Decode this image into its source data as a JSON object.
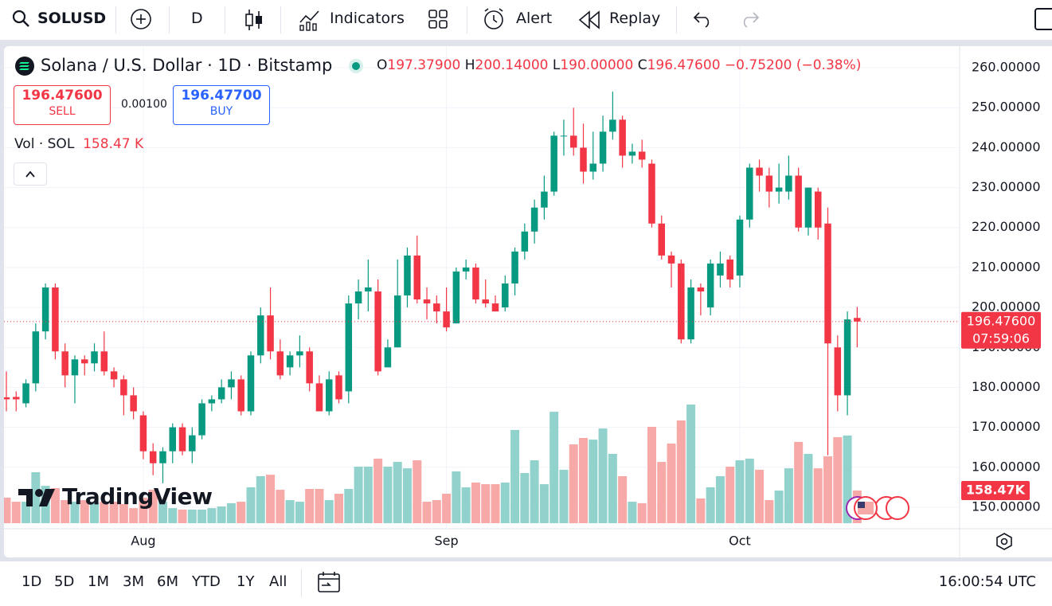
{
  "toolbar": {
    "symbol": "SOLUSD",
    "interval": "D",
    "indicators": "Indicators",
    "alert": "Alert",
    "replay": "Replay"
  },
  "legend": {
    "title": "Solana / U.S. Dollar · 1D · Bitstamp",
    "open_key": "O",
    "open": "197.37900",
    "high_key": "H",
    "high": "200.14000",
    "low_key": "L",
    "low": "190.00000",
    "close_key": "C",
    "close": "196.47600",
    "change": "−0.75200 (−0.38%)"
  },
  "trade": {
    "sell_price": "196.47600",
    "sell_label": "SELL",
    "spread": "0.00100",
    "buy_price": "196.47700",
    "buy_label": "BUY"
  },
  "volume_legend": {
    "label": "Vol · SOL",
    "value": "158.47 K"
  },
  "watermark": "TradingView",
  "chart_data": {
    "type": "candlestick",
    "categories": [
      null,
      null,
      null,
      null,
      null,
      null,
      null,
      null,
      null,
      null,
      null,
      null,
      null,
      null,
      "Aug",
      null,
      null,
      null,
      null,
      null,
      null,
      null,
      null,
      null,
      null,
      null,
      null,
      null,
      null,
      null,
      null,
      null,
      null,
      null,
      null,
      null,
      null,
      null,
      null,
      null,
      null,
      null,
      null,
      null,
      null,
      "Sep",
      null,
      null,
      null,
      null,
      null,
      null,
      null,
      null,
      null,
      null,
      null,
      null,
      null,
      null,
      null,
      null,
      null,
      null,
      null,
      null,
      null,
      null,
      null,
      null,
      null,
      null,
      null,
      null,
      null,
      "Oct",
      null,
      null,
      null,
      null,
      null,
      null,
      null,
      null,
      null,
      null,
      null,
      null
    ],
    "open": [
      177.5,
      177.6,
      176,
      181,
      194,
      205,
      189,
      183,
      187,
      186,
      189,
      184,
      182,
      178,
      173,
      164,
      161,
      164,
      170,
      164,
      168,
      176,
      177,
      180,
      182,
      174,
      188,
      198,
      189,
      185,
      188,
      189,
      181,
      174,
      183,
      179,
      201,
      204,
      204,
      185,
      190,
      203,
      213,
      202,
      201,
      199,
      196,
      209,
      210,
      202,
      201,
      200,
      206,
      214,
      219,
      225,
      229,
      243,
      243,
      240,
      234,
      236,
      244,
      247,
      238,
      239,
      236,
      221,
      213,
      211,
      192,
      205,
      200,
      208,
      212,
      208,
      222,
      235,
      233,
      229,
      229,
      233,
      220,
      229,
      221,
      190,
      178,
      197.379
    ],
    "high": [
      184,
      179,
      182,
      196,
      206,
      206,
      191,
      188,
      188,
      191,
      194,
      185,
      183,
      180,
      174,
      166,
      165,
      171,
      171,
      170,
      177,
      178,
      182,
      184,
      183,
      189,
      200,
      205,
      192,
      189,
      193,
      190,
      183,
      184,
      184,
      203,
      207,
      212,
      207,
      192,
      212,
      215,
      218,
      205,
      203,
      205,
      210,
      212,
      211,
      207,
      203,
      208,
      215,
      221,
      227,
      233,
      244,
      247,
      250,
      246,
      244,
      248,
      254,
      248,
      241,
      242,
      237,
      223,
      214,
      212,
      207,
      206,
      212,
      214,
      213,
      223,
      236,
      237,
      235,
      236,
      238,
      235,
      230,
      230,
      225,
      193,
      199,
      200.14
    ],
    "low": [
      174,
      174,
      175,
      179,
      192,
      187,
      180,
      176,
      183,
      184,
      183,
      180,
      173,
      172,
      162,
      158,
      156,
      161,
      163,
      161,
      167,
      174,
      176,
      177,
      173,
      173,
      186,
      187,
      182,
      183,
      185,
      179,
      174,
      173,
      176,
      176,
      197,
      199,
      183,
      185,
      190,
      200,
      201,
      197,
      196,
      194,
      196,
      207,
      201,
      200,
      199,
      199,
      203,
      212,
      216,
      222,
      228,
      238,
      238,
      231,
      232,
      234,
      242,
      235,
      236,
      235,
      220,
      212,
      205,
      191,
      191,
      198,
      198,
      205,
      205,
      205,
      220,
      229,
      225,
      226,
      227,
      219,
      218,
      217,
      163,
      174,
      173,
      190
    ],
    "close": [
      177,
      177,
      181,
      194,
      205,
      189,
      183,
      187,
      186,
      189,
      184,
      182,
      178,
      174,
      164,
      161,
      164,
      170,
      164,
      168,
      176,
      177,
      180,
      182,
      174,
      188,
      198,
      189,
      183,
      188,
      189,
      181,
      174,
      182,
      177,
      201,
      204,
      205,
      184,
      190,
      203,
      213,
      202,
      201,
      199,
      195,
      209,
      210,
      202,
      201,
      199,
      206,
      214,
      219,
      225,
      229,
      243,
      243,
      240,
      234,
      236,
      244,
      247,
      238,
      239,
      237,
      221,
      213,
      211,
      192,
      205,
      204,
      211,
      211,
      207,
      222,
      235,
      233,
      229,
      230,
      233,
      220,
      230,
      220,
      191,
      178,
      197,
      196.476
    ],
    "volume": [
      124,
      104,
      104,
      247,
      181,
      170,
      112,
      104,
      112,
      97,
      104,
      104,
      93,
      73,
      124,
      162,
      104,
      73,
      66,
      66,
      66,
      73,
      81,
      97,
      104,
      174,
      228,
      235,
      162,
      112,
      104,
      166,
      166,
      112,
      143,
      166,
      274,
      274,
      313,
      274,
      297,
      266,
      305,
      104,
      112,
      143,
      251,
      174,
      197,
      189,
      189,
      197,
      452,
      243,
      305,
      189,
      540,
      259,
      382,
      413,
      405,
      459,
      336,
      228,
      104,
      97,
      467,
      297,
      386,
      498,
      575,
      120,
      174,
      228,
      274,
      305,
      313,
      259,
      112,
      158,
      266,
      394,
      336,
      266,
      324,
      417,
      425,
      158.47
    ],
    "ylim": [
      145.4,
      264.6
    ],
    "yticks": [
      {
        "value": 150,
        "label": "150.00000"
      },
      {
        "value": 160,
        "label": "160.00000"
      },
      {
        "value": 170,
        "label": "170.00000"
      },
      {
        "value": 180,
        "label": "180.00000"
      },
      {
        "value": 190,
        "label": "190.00000"
      },
      {
        "value": 200,
        "label": "200.00000"
      },
      {
        "value": 210,
        "label": "210.00000"
      },
      {
        "value": 220,
        "label": "220.00000"
      },
      {
        "value": 230,
        "label": "230.00000"
      },
      {
        "value": 240,
        "label": "240.00000"
      },
      {
        "value": 250,
        "label": "250.00000"
      },
      {
        "value": 260,
        "label": "260.00000"
      }
    ],
    "grid": true,
    "up_color": "#089981",
    "down_color": "#f23645",
    "volume_up_color": "#92d2cc",
    "volume_down_color": "#f7a9a7",
    "last_price_label": "196.47600",
    "countdown": "07:59:06",
    "volume_tag": "158.47K"
  },
  "bottom": {
    "ranges": [
      "1D",
      "5D",
      "1M",
      "3M",
      "6M",
      "YTD",
      "1Y",
      "All"
    ],
    "time": "16:00:54 UTC"
  }
}
